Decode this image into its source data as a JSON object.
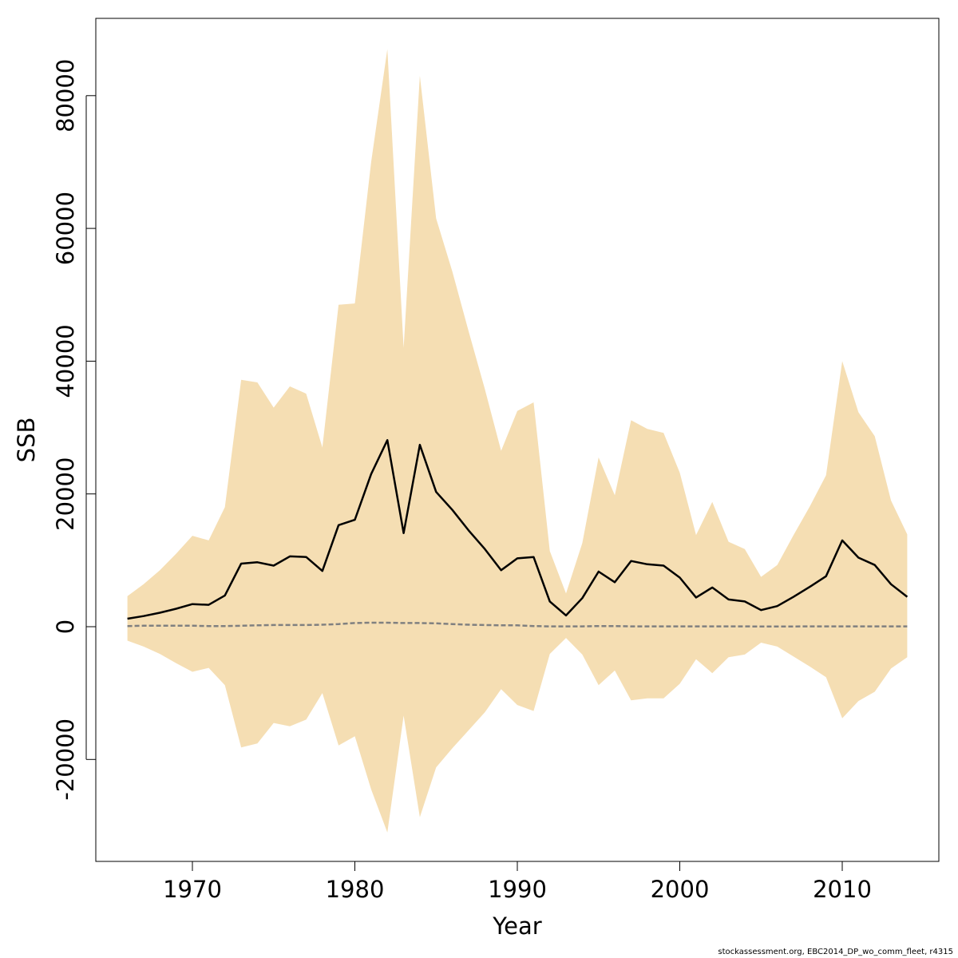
{
  "chart_data": {
    "type": "area",
    "xlabel": "Year",
    "ylabel": "SSB",
    "xlim": [
      1964,
      2016
    ],
    "ylim": [
      -35000,
      92000
    ],
    "x_ticks": [
      "1970",
      "1980",
      "1990",
      "2000",
      "2010"
    ],
    "y_ticks": [
      "-20000",
      "0",
      "20000",
      "40000",
      "60000",
      "80000"
    ],
    "colors": {
      "band": "#F5DEB3",
      "median": "#000000",
      "lower_line": "#808080"
    },
    "years": [
      1966,
      1967,
      1968,
      1969,
      1970,
      1971,
      1972,
      1973,
      1974,
      1975,
      1976,
      1977,
      1978,
      1979,
      1980,
      1981,
      1982,
      1983,
      1984,
      1985,
      1986,
      1987,
      1988,
      1989,
      1990,
      1991,
      1992,
      1993,
      1994,
      1995,
      1996,
      1997,
      1998,
      1999,
      2000,
      2001,
      2002,
      2003,
      2004,
      2005,
      2006,
      2007,
      2008,
      2009,
      2010,
      2011,
      2012,
      2013,
      2014
    ],
    "series": [
      {
        "values": [
          1200,
          1600,
          2100,
          2700,
          3400,
          3300,
          4700,
          9500,
          9700,
          9200,
          10600,
          10500,
          8400,
          15300,
          16100,
          23000,
          28100,
          14100,
          27400,
          20300,
          17600,
          14500,
          11700,
          8500,
          10300,
          10500,
          3800,
          1700,
          4300,
          8300,
          6700,
          9900,
          9400,
          9200,
          7400,
          4400,
          5900,
          4100,
          3800,
          2500,
          3100,
          4500,
          6000,
          7600,
          13000,
          10400,
          9300,
          6400,
          4500
        ]
      }
    ],
    "band_upper": [
      4600,
      6400,
      8500,
      11000,
      13700,
      13000,
      18000,
      37200,
      36800,
      33000,
      36200,
      35100,
      27000,
      48500,
      48700,
      70000,
      87000,
      42000,
      83000,
      61500,
      53500,
      44500,
      35800,
      26500,
      32500,
      33800,
      11400,
      5000,
      12600,
      25500,
      19800,
      31100,
      29800,
      29200,
      23200,
      13800,
      18800,
      12800,
      11700,
      7500,
      9300,
      13800,
      18100,
      22800,
      40000,
      32300,
      28700,
      19000,
      13900
    ],
    "band_lower": [
      -2100,
      -3000,
      -4100,
      -5500,
      -6800,
      -6200,
      -8800,
      -18200,
      -17600,
      -14500,
      -15000,
      -14000,
      -10000,
      -17900,
      -16500,
      -24500,
      -31000,
      -13400,
      -28700,
      -21200,
      -18300,
      -15600,
      -12900,
      -9400,
      -11800,
      -12700,
      -4100,
      -1700,
      -4200,
      -8800,
      -6600,
      -11100,
      -10800,
      -10800,
      -8600,
      -4900,
      -7000,
      -4600,
      -4200,
      -2400,
      -3000,
      -4500,
      -6000,
      -7600,
      -13800,
      -11200,
      -9800,
      -6300,
      -4600
    ],
    "lower_line": [
      100,
      150,
      150,
      150,
      150,
      100,
      100,
      150,
      200,
      250,
      250,
      250,
      300,
      400,
      550,
      600,
      600,
      550,
      550,
      500,
      400,
      300,
      250,
      200,
      200,
      100,
      50,
      50,
      50,
      100,
      100,
      50,
      50,
      50,
      50,
      50,
      50,
      50,
      50,
      30,
      30,
      40,
      50,
      50,
      50,
      50,
      50,
      50,
      50
    ]
  },
  "footer": "stockassessment.org, EBC2014_DP_wo_comm_fleet, r4315"
}
